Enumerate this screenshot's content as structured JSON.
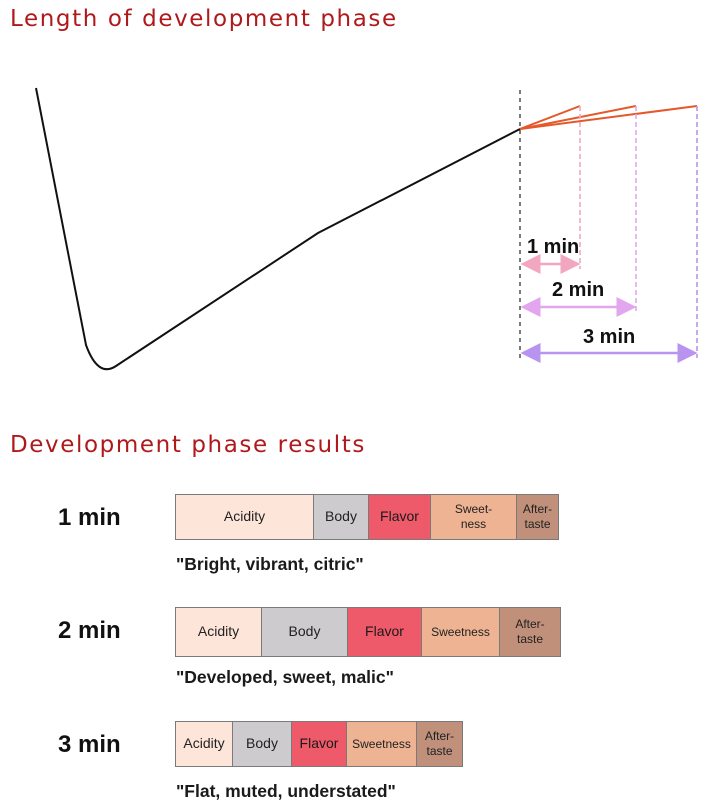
{
  "colors": {
    "title": "#b0191c",
    "curve": "#111111",
    "development": "#e4582a",
    "marker_1": "#f3a6c0",
    "marker_2": "#e2a6ee",
    "marker_3": "#b893f0",
    "acidity": "#fde5da",
    "body": "#cdcbcd",
    "flavor": "#ee5a6a",
    "sweetness": "#eeb393",
    "aftertaste": "#c0907a"
  },
  "title_top": "Length of development phase",
  "title_bottom": "Development phase results",
  "durations": [
    "1 min",
    "2 min",
    "3 min"
  ],
  "results": [
    {
      "label": "1 min",
      "quote": "\"Bright, vibrant, citric\"",
      "segments": [
        {
          "key": "acidity",
          "text": "Acidity",
          "value": 35.5
        },
        {
          "key": "body",
          "text": "Body",
          "value": 14
        },
        {
          "key": "flavor",
          "text": "Flavor",
          "value": 16
        },
        {
          "key": "sweetness",
          "text": "Sweet-\nness",
          "value": 22
        },
        {
          "key": "aftertaste",
          "text": "After-\ntaste",
          "value": 10.5
        }
      ]
    },
    {
      "label": "2 min",
      "quote": "\"Developed, sweet, malic\"",
      "segments": [
        {
          "key": "acidity",
          "text": "Acidity",
          "value": 22
        },
        {
          "key": "body",
          "text": "Body",
          "value": 22
        },
        {
          "key": "flavor",
          "text": "Flavor",
          "value": 19
        },
        {
          "key": "sweetness",
          "text": "Sweetness",
          "value": 20
        },
        {
          "key": "aftertaste",
          "text": "After-\ntaste",
          "value": 15.5
        }
      ]
    },
    {
      "label": "3 min",
      "quote": "\"Flat, muted, understated\"",
      "segments": [
        {
          "key": "acidity",
          "text": "Acidity",
          "value": 14.5
        },
        {
          "key": "body",
          "text": "Body",
          "value": 15
        },
        {
          "key": "flavor",
          "text": "Flavor",
          "value": 14
        },
        {
          "key": "sweetness",
          "text": "Sweetness",
          "value": 18
        },
        {
          "key": "aftertaste",
          "text": "After-\ntaste",
          "value": 11.5
        }
      ]
    }
  ]
}
